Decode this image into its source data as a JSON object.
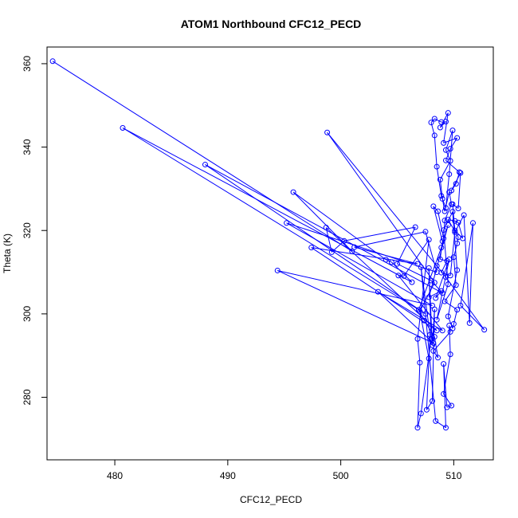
{
  "chart_data": {
    "type": "scatter",
    "title": "ATOM1 Northbound CFC12_PECD",
    "xlabel": "CFC12_PECD",
    "ylabel": "Theta (K)",
    "xlim": [
      474,
      513.5
    ],
    "ylim": [
      265,
      364
    ],
    "x_ticks": [
      480,
      490,
      500,
      510
    ],
    "y_ticks": [
      280,
      300,
      320,
      340,
      360
    ],
    "grid": false,
    "legend": "none",
    "marker": "open-circle",
    "connect_points": true,
    "color": "#0000ff",
    "series": [
      {
        "points": [
          [
            474.5,
            360.6
          ],
          [
            501,
            315
          ],
          [
            495.8,
            329.2
          ],
          [
            504,
            313
          ],
          [
            504.5,
            312.4
          ],
          [
            506.3,
            307.6
          ],
          [
            480.7,
            344.6
          ],
          [
            507.5,
            300
          ],
          [
            488,
            335.8
          ],
          [
            509,
            305
          ],
          [
            508,
            308
          ],
          [
            505,
            312
          ],
          [
            506.6,
            320.8
          ],
          [
            500.3,
            317.5
          ],
          [
            499.2,
            314.8
          ],
          [
            498.7,
            320.7
          ],
          [
            508.5,
            296
          ],
          [
            497.4,
            315.9
          ],
          [
            506.8,
            312
          ],
          [
            501.2,
            316
          ],
          [
            507.5,
            319.7
          ],
          [
            508.5,
            310
          ],
          [
            495.2,
            321.8
          ],
          [
            508.1,
            302
          ],
          [
            494.4,
            310.4
          ],
          [
            508.2,
            293
          ],
          [
            503.3,
            305.3
          ],
          [
            509,
            296
          ],
          [
            505.1,
            309.2
          ],
          [
            505.6,
            309.1
          ],
          [
            507.8,
            317.8
          ],
          [
            506.8,
            294
          ],
          [
            507,
            288.3
          ],
          [
            506.8,
            272.7
          ],
          [
            507.1,
            276.1
          ],
          [
            508,
            294
          ],
          [
            507.8,
            311
          ],
          [
            508.1,
            292.5
          ],
          [
            508.3,
            301.1
          ],
          [
            508.1,
            279.1
          ],
          [
            507.6,
            277
          ],
          [
            507.9,
            295
          ],
          [
            507.1,
            311.2
          ],
          [
            508.4,
            274.3
          ],
          [
            509.3,
            272.7
          ],
          [
            509.1,
            288
          ],
          [
            509.4,
            277.6
          ],
          [
            509.8,
            278
          ],
          [
            509.1,
            280.8
          ],
          [
            509.7,
            290.3
          ],
          [
            509.6,
            297.2
          ],
          [
            509.7,
            295.7
          ],
          [
            508.2,
            291.1
          ],
          [
            508.6,
            289.5
          ],
          [
            508.3,
            294.5
          ],
          [
            507.4,
            298.4
          ],
          [
            506.9,
            301
          ],
          [
            508.9,
            315.9
          ],
          [
            509.5,
            321.3
          ],
          [
            507.8,
            304
          ],
          [
            508.9,
            305.5
          ],
          [
            508.4,
            303.8
          ],
          [
            509.6,
            313.1
          ],
          [
            508.5,
            298.6
          ],
          [
            509.5,
            307.1
          ],
          [
            509.1,
            320.1
          ],
          [
            509.9,
            324.5
          ],
          [
            510.3,
            310.5
          ],
          [
            509.5,
            299.4
          ],
          [
            509.9,
            296.5
          ],
          [
            510,
            297.6
          ],
          [
            510.3,
            301
          ],
          [
            509.2,
            303
          ],
          [
            510.2,
            306.9
          ],
          [
            510,
            313.6
          ],
          [
            510.3,
            316.9
          ],
          [
            510.4,
            318.4
          ],
          [
            509.5,
            322.6
          ],
          [
            510.1,
            322.3
          ],
          [
            510.4,
            321.9
          ],
          [
            510.8,
            318.1
          ],
          [
            510.1,
            320
          ],
          [
            509.9,
            326.3
          ],
          [
            510.4,
            325.3
          ],
          [
            510.6,
            333.8
          ],
          [
            509.8,
            329.6
          ],
          [
            510.2,
            331.2
          ],
          [
            510.5,
            334
          ],
          [
            509.3,
            336.8
          ],
          [
            509.7,
            339.6
          ],
          [
            510.3,
            342.2
          ],
          [
            509.1,
            341
          ],
          [
            509.5,
            348.2
          ],
          [
            508.8,
            344.7
          ],
          [
            509.3,
            346.1
          ],
          [
            508.9,
            346
          ],
          [
            508.3,
            346.8
          ],
          [
            508,
            345.9
          ],
          [
            508.3,
            342.8
          ],
          [
            508.5,
            335.3
          ],
          [
            508.9,
            328.3
          ],
          [
            509.3,
            325.4
          ],
          [
            509.6,
            333.5
          ],
          [
            509.9,
            344
          ],
          [
            509.3,
            339.3
          ],
          [
            509.7,
            336.7
          ],
          [
            508.8,
            332.2
          ],
          [
            509,
            327.6
          ],
          [
            509.2,
            324.6
          ],
          [
            509.6,
            329.2
          ],
          [
            509.8,
            326.3
          ],
          [
            509.2,
            322.4
          ],
          [
            509.1,
            318.1
          ],
          [
            508.6,
            324.6
          ],
          [
            508.2,
            325.8
          ],
          [
            509,
            317.4
          ],
          [
            508.8,
            313.1
          ],
          [
            509.4,
            312.7
          ],
          [
            508.9,
            309.9
          ],
          [
            509.7,
            309.2
          ],
          [
            510.1,
            319.6
          ],
          [
            510.9,
            323.7
          ],
          [
            511.4,
            297.8
          ],
          [
            511.7,
            321.8
          ],
          [
            510.6,
            302
          ],
          [
            512.7,
            296.2
          ],
          [
            509.3,
            308.8
          ],
          [
            508.5,
            311.5
          ],
          [
            498.8,
            343.5
          ],
          [
            508.3,
            307.5
          ],
          [
            507,
            300.6
          ],
          [
            507.8,
            289.3
          ]
        ]
      }
    ]
  }
}
